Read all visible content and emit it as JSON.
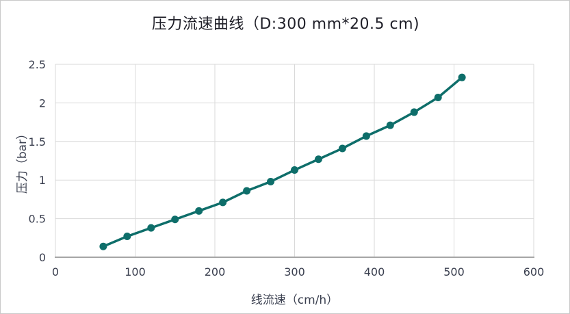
{
  "window": {
    "background": "#ffffff",
    "border_color": "#c9c9c9"
  },
  "chart_data": {
    "type": "line",
    "title": "压力流速曲线（D:300 mm*20.5 cm)",
    "xlabel": "线流速（cm/h）",
    "ylabel": "压力（bar）",
    "x": [
      60,
      90,
      120,
      150,
      180,
      210,
      240,
      270,
      300,
      330,
      360,
      390,
      420,
      450,
      480,
      510
    ],
    "series": [
      {
        "name": "压力",
        "values": [
          0.14,
          0.27,
          0.38,
          0.49,
          0.6,
          0.71,
          0.86,
          0.98,
          1.13,
          1.27,
          1.41,
          1.57,
          1.71,
          1.88,
          2.07,
          2.33
        ]
      }
    ],
    "xlim": [
      0,
      600
    ],
    "ylim": [
      0,
      2.5
    ],
    "x_ticks": [
      0,
      100,
      200,
      300,
      400,
      500,
      600
    ],
    "y_ticks": [
      0,
      0.5,
      1,
      1.5,
      2,
      2.5
    ],
    "grid": true,
    "legend": "none",
    "marker": "circle",
    "colors": {
      "line": "#0e6e6a",
      "grid": "#d9d9d9",
      "axis_line": "#a6a6a6",
      "tick_text": "#3a3f4f",
      "title_text": "#1f1f28"
    }
  }
}
